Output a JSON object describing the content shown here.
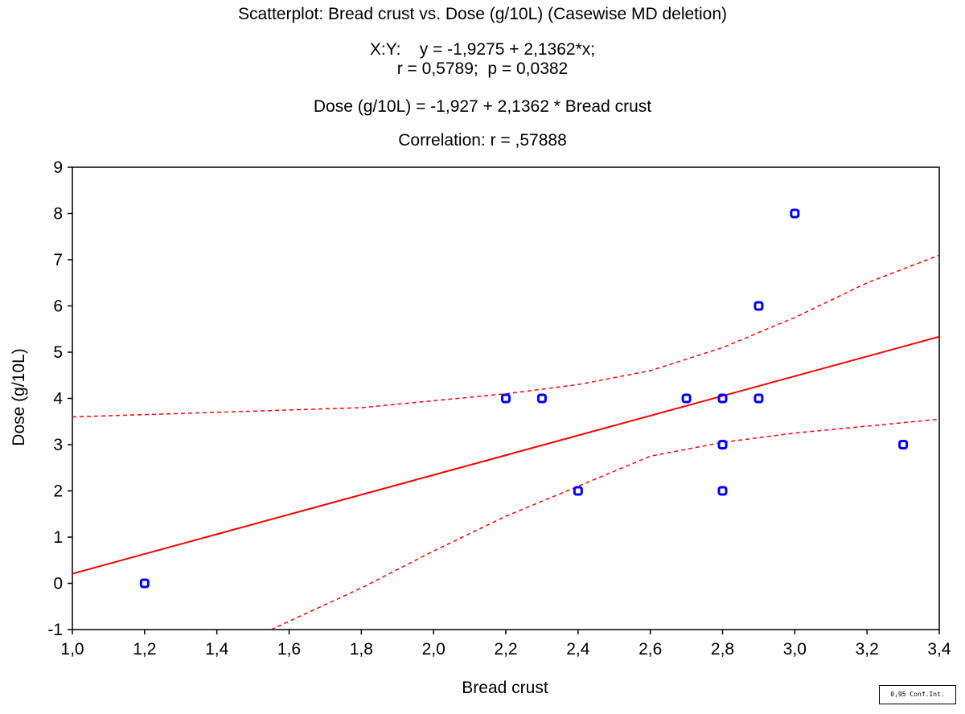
{
  "chart_data": {
    "type": "scatter",
    "title": "Scatterplot: Bread crust vs. Dose (g/10L) (Casewise MD deletion)",
    "subtitle_lines": [
      "X:Y:    y = -1,9275 + 2,1362*x;",
      "r = 0,5789;  p = 0,0382",
      "Dose (g/10L) = -1,927 + 2,1362 * Bread crust",
      "Correlation: r = ,57888"
    ],
    "xlabel": "Bread crust",
    "ylabel": "Dose (g/10L)",
    "xlim": [
      1.0,
      3.4
    ],
    "ylim": [
      -1,
      9
    ],
    "xticks": [
      "1,0",
      "1,2",
      "1,4",
      "1,6",
      "1,8",
      "2,0",
      "2,2",
      "2,4",
      "2,6",
      "2,8",
      "3,0",
      "3,2",
      "3,4"
    ],
    "yticks": [
      "-1",
      "0",
      "1",
      "2",
      "3",
      "4",
      "5",
      "6",
      "7",
      "8",
      "9"
    ],
    "grid": false,
    "legend_text": "0,95 Conf.Int.",
    "points": [
      {
        "x": 1.2,
        "y": 0
      },
      {
        "x": 2.2,
        "y": 4
      },
      {
        "x": 2.3,
        "y": 4
      },
      {
        "x": 2.4,
        "y": 2
      },
      {
        "x": 2.7,
        "y": 4
      },
      {
        "x": 2.8,
        "y": 4
      },
      {
        "x": 2.8,
        "y": 3
      },
      {
        "x": 2.8,
        "y": 2
      },
      {
        "x": 2.9,
        "y": 6
      },
      {
        "x": 2.9,
        "y": 4
      },
      {
        "x": 3.0,
        "y": 8
      },
      {
        "x": 3.3,
        "y": 3
      }
    ],
    "regression": {
      "intercept": -1.9275,
      "slope": 2.1362
    },
    "conf_band_upper": [
      [
        1.0,
        3.6
      ],
      [
        1.4,
        3.7
      ],
      [
        1.8,
        3.8
      ],
      [
        2.2,
        4.1
      ],
      [
        2.4,
        4.3
      ],
      [
        2.6,
        4.6
      ],
      [
        2.8,
        5.1
      ],
      [
        3.0,
        5.75
      ],
      [
        3.2,
        6.5
      ],
      [
        3.4,
        7.1
      ]
    ],
    "conf_band_lower": [
      [
        1.55,
        -1.0
      ],
      [
        1.8,
        -0.1
      ],
      [
        2.0,
        0.7
      ],
      [
        2.2,
        1.45
      ],
      [
        2.4,
        2.1
      ],
      [
        2.6,
        2.75
      ],
      [
        2.8,
        3.05
      ],
      [
        3.0,
        3.25
      ],
      [
        3.2,
        3.4
      ],
      [
        3.4,
        3.55
      ]
    ],
    "colors": {
      "points": "#0000ff",
      "fit": "#ff0000",
      "band": "#ff0000",
      "axes": "#000000"
    }
  }
}
